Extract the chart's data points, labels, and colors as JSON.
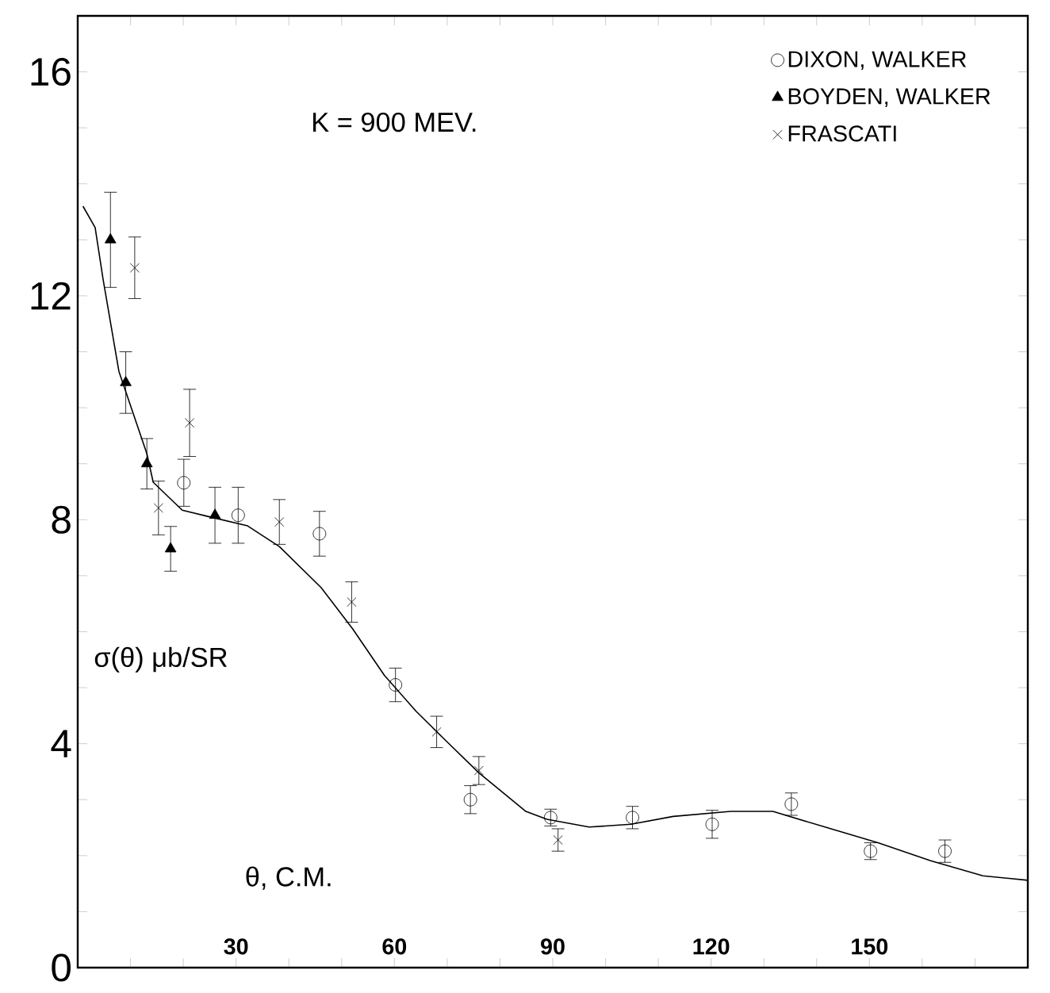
{
  "chart_data": {
    "type": "scatter",
    "title": "K = 900 MEV.",
    "xlabel": "θ, C.M.",
    "ylabel": "σ(θ) μb/SR",
    "xlim": [
      0,
      180
    ],
    "ylim": [
      0,
      17
    ],
    "xticks": [
      {
        "value": 10,
        "label": null
      },
      {
        "value": 20,
        "label": null
      },
      30,
      {
        "value": 40,
        "label": null
      },
      {
        "value": 50,
        "label": null
      },
      60,
      {
        "value": 70,
        "label": null
      },
      {
        "value": 80,
        "label": null
      },
      90,
      {
        "value": 100,
        "label": null
      },
      {
        "value": 110,
        "label": null
      },
      120,
      {
        "value": 130,
        "label": null
      },
      {
        "value": 140,
        "label": null
      },
      150,
      {
        "value": 160,
        "label": null
      },
      {
        "value": 170,
        "label": null
      }
    ],
    "yticks": [
      0,
      {
        "value": 1,
        "label": null
      },
      {
        "value": 2,
        "label": null
      },
      {
        "value": 3,
        "label": null
      },
      4,
      {
        "value": 5,
        "label": null
      },
      {
        "value": 6,
        "label": null
      },
      {
        "value": 7,
        "label": null
      },
      8,
      {
        "value": 9,
        "label": null
      },
      {
        "value": 10,
        "label": null
      },
      {
        "value": 11,
        "label": null
      },
      12,
      {
        "value": 13,
        "label": null
      },
      {
        "value": 14,
        "label": null
      },
      {
        "value": 15,
        "label": null
      },
      16
    ],
    "grid": false,
    "legend": "top right",
    "series": [
      {
        "name": "DIXON, WALKER",
        "color": "#000000",
        "marker": "circle",
        "x": [
          20.1,
          30.4,
          45.8,
          60.2,
          74.4,
          89.6,
          105.1,
          120.2,
          135.2,
          150.2,
          164.3
        ],
        "values": [
          8.66,
          8.08,
          7.75,
          5.05,
          3.0,
          2.68,
          2.68,
          2.56,
          2.92,
          2.08,
          2.08
        ],
        "errors": [
          0.42,
          0.5,
          0.4,
          0.3,
          0.25,
          0.15,
          0.2,
          0.25,
          0.2,
          0.15,
          0.2
        ]
      },
      {
        "name": "BOYDEN, WALKER",
        "color": "#000000",
        "marker": "triangle",
        "x": [
          6.2,
          9.1,
          13.1,
          17.6,
          26.0
        ],
        "values": [
          13.0,
          10.45,
          9.0,
          7.48,
          8.08
        ],
        "errors": [
          0.85,
          0.55,
          0.45,
          0.4,
          0.5
        ]
      },
      {
        "name": "FRASCATI",
        "color": "#000000",
        "marker": "cross",
        "x": [
          10.8,
          15.3,
          21.2,
          38.2,
          51.9,
          68.0,
          76.0,
          91.0
        ],
        "values": [
          12.5,
          8.21,
          9.73,
          7.96,
          6.53,
          4.21,
          3.52,
          2.28
        ],
        "errors": [
          0.55,
          0.48,
          0.6,
          0.4,
          0.36,
          0.28,
          0.25,
          0.2
        ]
      },
      {
        "type": "line",
        "color": "#000000",
        "marker": "none",
        "line_style": "solid",
        "x": [
          1,
          3.3,
          4.8,
          7.8,
          13.1,
          14.3,
          19.8,
          24.2,
          32.2,
          38.2,
          46.1,
          52.1,
          58.1,
          64.1,
          70.0,
          76.0,
          84.9,
          88.9,
          96.9,
          104.8,
          112.8,
          123.7,
          131.7,
          141.6,
          151.6,
          161.6,
          171.5,
          180
        ],
        "values": [
          13.6,
          13.22,
          12.3,
          10.65,
          9.18,
          8.67,
          8.17,
          8.07,
          7.89,
          7.52,
          6.79,
          6.05,
          5.22,
          4.58,
          4.03,
          3.48,
          2.79,
          2.65,
          2.51,
          2.56,
          2.7,
          2.79,
          2.79,
          2.51,
          2.23,
          1.91,
          1.64,
          1.56
        ]
      }
    ]
  }
}
